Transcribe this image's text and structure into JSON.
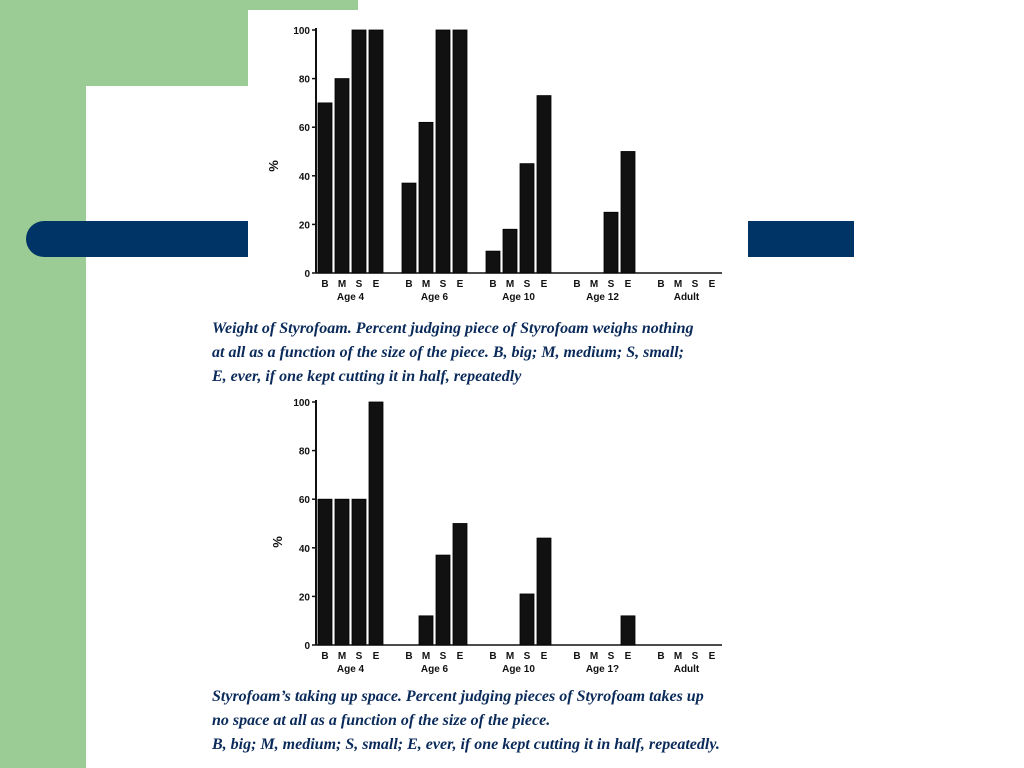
{
  "colors": {
    "green": "#9ccc95",
    "blue_bar": "#003366",
    "caption": "#0a2a5a",
    "bars": "#111111"
  },
  "captions": [
    {
      "lines": [
        "Weight of Styrofoam. Percent judging piece of Styrofoam weighs nothing",
        "at all as a function of the size of the piece. B, big; M, medium; S, small;",
        "E, ever, if one kept cutting it in half, repeatedly"
      ]
    },
    {
      "lines": [
        "Styrofoam’s taking up space. Percent judging pieces of Styrofoam takes up",
        "no space at all as a function of the size of the piece.",
        "B, big; M, medium; S, small; E, ever, if one kept cutting it in half, repeatedly."
      ]
    }
  ],
  "chart_data": [
    {
      "type": "bar",
      "ylabel": "%",
      "ylim": [
        0,
        100
      ],
      "yticks": [
        0,
        20,
        40,
        60,
        80,
        100
      ],
      "bar_labels": [
        "B",
        "M",
        "S",
        "E"
      ],
      "groups": [
        {
          "label": "Age 4",
          "values": [
            70,
            80,
            100,
            100
          ]
        },
        {
          "label": "Age 6",
          "values": [
            37,
            62,
            100,
            100
          ]
        },
        {
          "label": "Age 10",
          "values": [
            9,
            18,
            45,
            73
          ]
        },
        {
          "label": "Age 12",
          "values": [
            0,
            0,
            25,
            50
          ]
        },
        {
          "label": "Adult",
          "values": [
            0,
            0,
            0,
            0
          ]
        }
      ]
    },
    {
      "type": "bar",
      "ylabel": "%",
      "ylim": [
        0,
        100
      ],
      "yticks": [
        0,
        20,
        40,
        60,
        80,
        100
      ],
      "bar_labels": [
        "B",
        "M",
        "S",
        "E"
      ],
      "groups": [
        {
          "label": "Age 4",
          "values": [
            60,
            60,
            60,
            100
          ]
        },
        {
          "label": "Age 6",
          "values": [
            0,
            12,
            37,
            50
          ]
        },
        {
          "label": "Age 10",
          "values": [
            0,
            0,
            21,
            44
          ]
        },
        {
          "label": "Age 1?",
          "values": [
            0,
            0,
            0,
            12
          ]
        },
        {
          "label": "Adult",
          "values": [
            0,
            0,
            0,
            0
          ]
        }
      ]
    }
  ]
}
